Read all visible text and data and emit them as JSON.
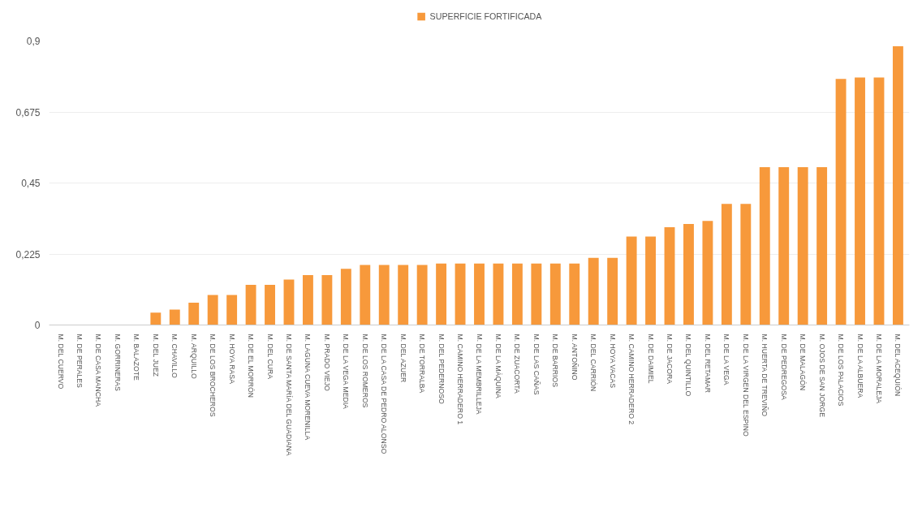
{
  "chart_data": {
    "type": "bar",
    "categories": [
      "M. DEL CUERVO",
      "M. DE PERALES",
      "M. DE CASA MANCHA",
      "M. GORRINERAS",
      "M. BALAZOTE",
      "M. DEL JUEZ",
      "M. CHAVILLO",
      "M. ARQUILLO",
      "M. DE LOS BROCHEROS",
      "M. HOYA RASA",
      "M. DE EL MORRÓN",
      "M. DEL CURA",
      "M. DE SANTA MARÍA DEL GUADIANA",
      "M. LAGUNA CUEVA MORENILLA",
      "M. PRADO VIEJO",
      "M. DE LA VEGA MEDIA",
      "M. DE LOS ROMEROS",
      "M. DE LA CASA DE PEDRO ALONSO",
      "M. DEL AZUER",
      "M. DE TORRALBA",
      "M. DEL PEDERNOSO",
      "M. CAMINO HERRADERO 1",
      "M. DE LA MEMBRILLEJA",
      "M. DE LA MÁQUINA",
      "M. DE ZUACORTA",
      "M. DE LAS CAÑAS",
      "M. DE BARRIOS",
      "M. ANTOÑINO",
      "M. DEL CARRIÓN",
      "M. HOYA VACAS",
      "M. CAMINO HERRADERO 2",
      "M. DE DAIMIEL",
      "M. DE JACORA",
      "M. DEL QUINTILLO",
      "M. DEL RETAMAR",
      "M. DE LA VEGA",
      "M. DE LA VIRGEN DEL ESPINO",
      "M. HUERTA DE TREVIÑO",
      "M. DE PEDREGOSA",
      "M. DE MALAGÓN",
      "M. OJOS DE SAN JORGE",
      "M. DE LOS PALACIOS",
      "M. DE LA ALBUERA",
      "M. DE LA MORALEJA",
      "M. DEL ACEQUIÓN"
    ],
    "series": [
      {
        "name": "SUPERFICIE FORTIFICADA",
        "color": "#f7993b",
        "values": [
          0,
          0,
          0,
          0,
          0,
          0.039,
          0.049,
          0.071,
          0.095,
          0.095,
          0.127,
          0.127,
          0.144,
          0.158,
          0.158,
          0.178,
          0.19,
          0.19,
          0.19,
          0.19,
          0.195,
          0.195,
          0.195,
          0.195,
          0.195,
          0.195,
          0.195,
          0.195,
          0.213,
          0.213,
          0.28,
          0.28,
          0.31,
          0.32,
          0.33,
          0.384,
          0.384,
          0.5,
          0.5,
          0.5,
          0.5,
          0.78,
          0.784,
          0.784,
          0.883
        ]
      }
    ],
    "ylim": [
      0,
      0.9
    ],
    "yticks": [
      {
        "value": 0,
        "label": "0"
      },
      {
        "value": 0.225,
        "label": "0,225"
      },
      {
        "value": 0.45,
        "label": "0,45"
      },
      {
        "value": 0.675,
        "label": "0,675"
      },
      {
        "value": 0.9,
        "label": "0,9"
      }
    ],
    "grid": "y",
    "legend": "top"
  }
}
